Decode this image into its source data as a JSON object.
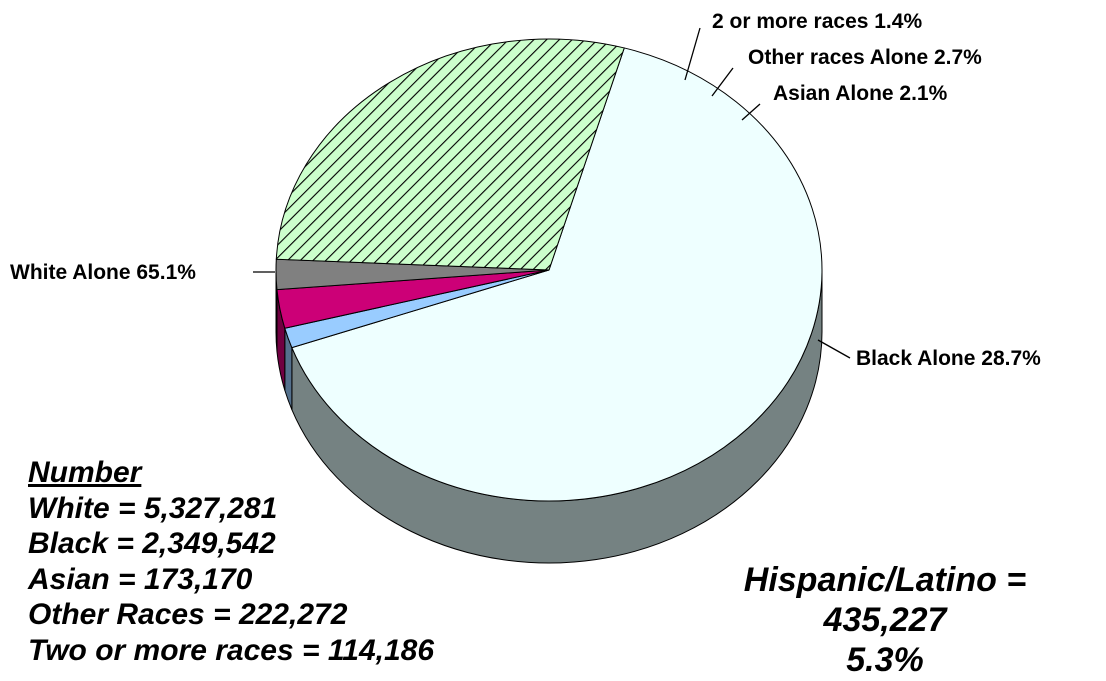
{
  "chart_data": {
    "type": "pie",
    "title": "",
    "slices": [
      {
        "label": "White Alone",
        "value": 65.1,
        "display": "White Alone 65.1%",
        "color": "#eeffff"
      },
      {
        "label": "2 or more races",
        "value": 1.4,
        "display": "2 or more races 1.4%",
        "color": "#99ccff"
      },
      {
        "label": "Other races Alone",
        "value": 2.7,
        "display": "Other races Alone 2.7%",
        "color": "#cc0077"
      },
      {
        "label": "Asian Alone",
        "value": 2.1,
        "display": "Asian Alone 2.1%",
        "color": "#808080"
      },
      {
        "label": "Black Alone",
        "value": 28.7,
        "display": "Black Alone 28.7%",
        "color": "#ccffcc",
        "pattern": "diagonal-hatch"
      }
    ]
  },
  "numbers": {
    "heading": "Number",
    "lines": [
      "White = 5,327,281",
      "Black = 2,349,542",
      "Asian = 173,170",
      "Other Races = 222,272",
      "Two or more races = 114,186"
    ]
  },
  "hispanic": {
    "lines": [
      "Hispanic/Latino =",
      "435,227",
      "5.3%"
    ]
  }
}
